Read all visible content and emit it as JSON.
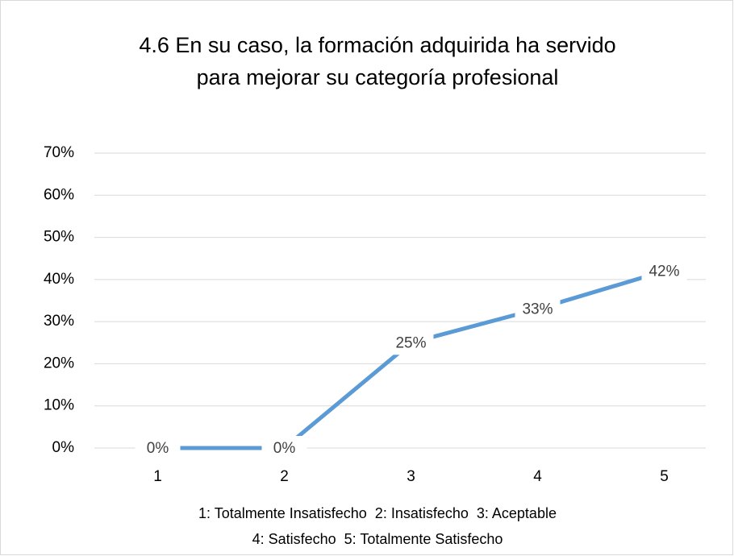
{
  "chart_data": {
    "type": "line",
    "title": [
      "4.6 En su caso, la formación adquirida ha servido",
      "para mejorar su categoría profesional"
    ],
    "categories": [
      "1",
      "2",
      "3",
      "4",
      "5"
    ],
    "values": [
      0,
      0,
      25,
      33,
      42
    ],
    "value_labels": [
      "0%",
      "0%",
      "25%",
      "33%",
      "42%"
    ],
    "color": "#5b9bd5",
    "ylim": [
      0,
      70
    ],
    "yticks": [
      {
        "value": 0,
        "label": "0%"
      },
      {
        "value": 10,
        "label": "10%"
      },
      {
        "value": 20,
        "label": "20%"
      },
      {
        "value": 30,
        "label": "30%"
      },
      {
        "value": 40,
        "label": "40%"
      },
      {
        "value": 50,
        "label": "50%"
      },
      {
        "value": 60,
        "label": "60%"
      },
      {
        "value": 70,
        "label": "70%"
      }
    ],
    "grid": true,
    "footnote": [
      "1: Totalmente Insatisfecho  2: Insatisfecho  3: Aceptable",
      "4: Satisfecho  5: Totalmente Satisfecho"
    ]
  }
}
